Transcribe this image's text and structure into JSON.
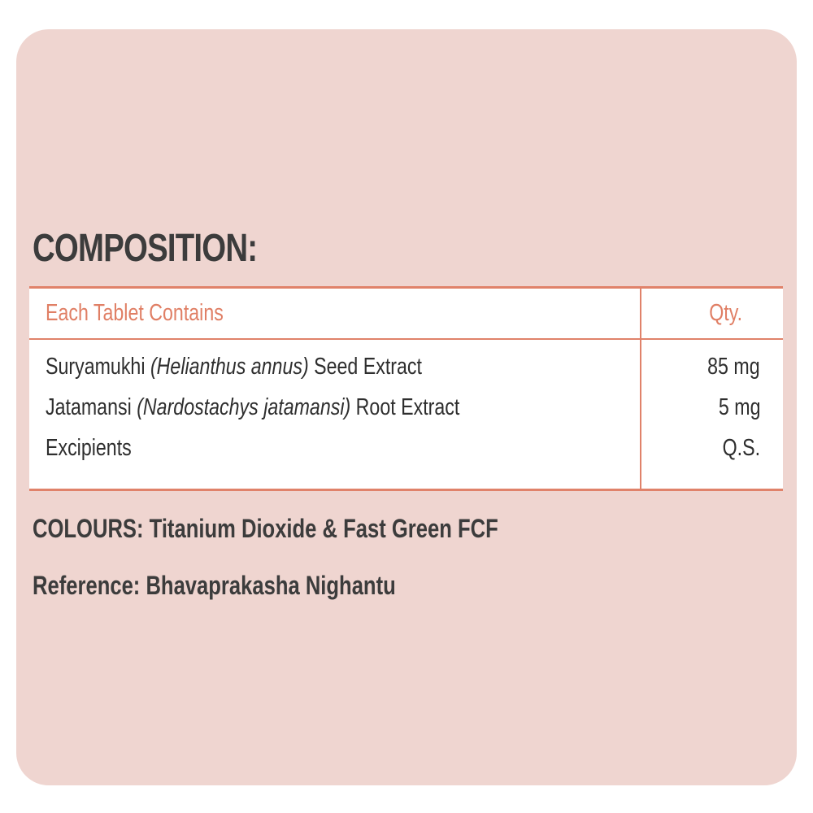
{
  "title": "COMPOSITION:",
  "table": {
    "header": {
      "ingredient": "Each Tablet Contains",
      "qty": "Qty."
    },
    "rows": [
      {
        "name": "Suryamukhi",
        "latin": "(Helianthus annus)",
        "part": "Seed Extract",
        "qty": "85 mg"
      },
      {
        "name": "Jatamansi",
        "latin": "(Nardostachys jatamansi)",
        "part": "Root Extract",
        "qty": "5 mg"
      },
      {
        "name": "Excipients",
        "latin": "",
        "part": "",
        "qty": "Q.S."
      }
    ]
  },
  "colours": {
    "label": "COLOURS",
    "value": ": Titanium Dioxide & Fast Green FCF"
  },
  "reference": {
    "label": "Reference",
    "value": ": Bhavaprakasha Nighantu"
  },
  "colors": {
    "background": "#efd5d0",
    "accent": "#e0826a",
    "text": "#3a3a3a"
  }
}
